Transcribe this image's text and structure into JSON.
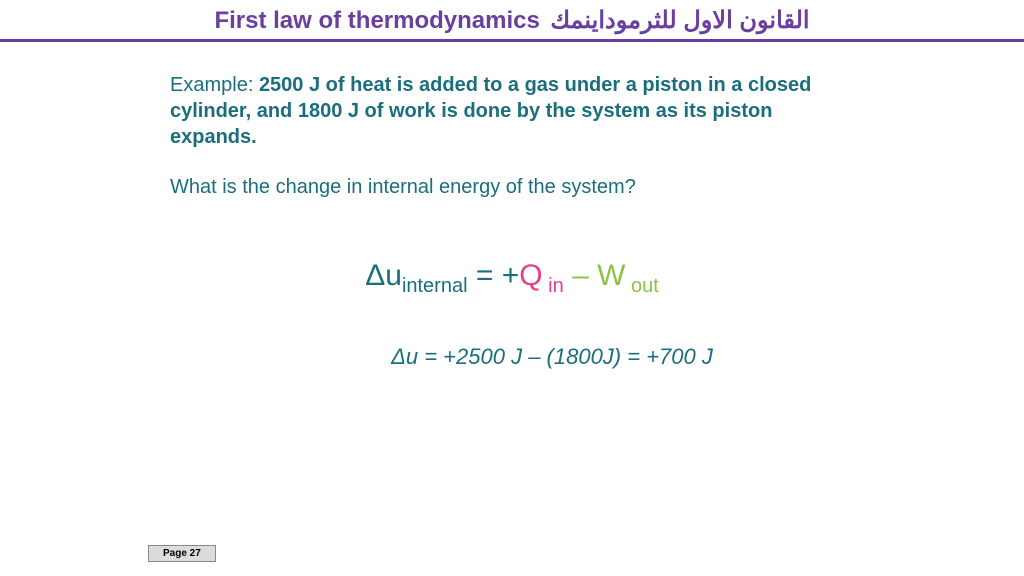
{
  "header": {
    "title_en": "First law of thermodynamics",
    "title_ar": "القانون الاول للثرموداينمك",
    "color": "#6b3fa0",
    "underline_color": "#6b3fa0"
  },
  "body": {
    "example_label": "Example: ",
    "example_bold": "2500 J of heat is added to a gas under a piston in a closed cylinder, and 1800 J of work is done by the system as its piston expands.",
    "question": "What is the change in internal energy of the system?",
    "text_color": "#1a6e7e"
  },
  "equation": {
    "delta": "Δ",
    "u": "u",
    "sub_internal": "internal",
    "eq_plus": " = +",
    "Q": "Q",
    "sub_in": " in",
    "minus": " – ",
    "W": "W",
    "sub_out": " out",
    "colors": {
      "du": "#1a6e7e",
      "Q": "#e83e8c",
      "W": "#8bc34a"
    },
    "fontsize_main": 30,
    "fontsize_sub": 20
  },
  "solution": {
    "text": "Δu = +2500 J – (1800J) = +700 J",
    "color": "#1a6e7e",
    "fontsize": 22,
    "italic": true
  },
  "footer": {
    "page_label": "Page 27",
    "bg": "#dcdcdc"
  }
}
